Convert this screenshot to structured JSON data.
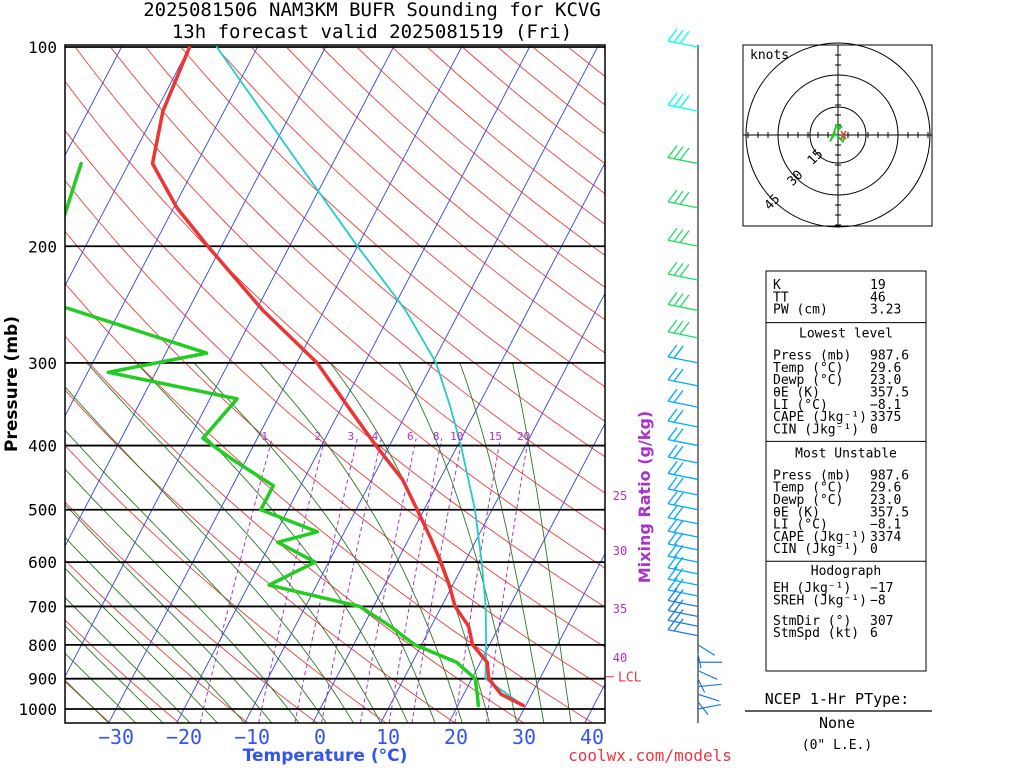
{
  "header": {
    "title": "2025081506 NAM3KM BUFR Sounding for KCVG",
    "subtitle": "13h forecast valid 2025081519 (Fri)"
  },
  "chart_data": {
    "type": "skew-t log-p",
    "ylabel": "Pressure (mb)",
    "xlabel": "Temperature (°C)",
    "mixing_label": "Mixing Ratio (g/kg)",
    "pressure_ticks": [
      100,
      200,
      300,
      400,
      500,
      600,
      700,
      800,
      900,
      1000
    ],
    "temp_ticks": [
      -30,
      -20,
      -10,
      0,
      10,
      20,
      30,
      40
    ],
    "mixing_ratios": [
      "1",
      "2",
      "3",
      "4",
      "6",
      "8",
      "10",
      "15",
      "20"
    ],
    "theta_e_labels": [
      "25",
      "30",
      "35",
      "40"
    ],
    "lcl_label": "LCL",
    "lcl_pressure": 900,
    "temperature": [
      {
        "p": 987.6,
        "t": 29.6
      },
      {
        "p": 950,
        "t": 25.5
      },
      {
        "p": 900,
        "t": 22.5
      },
      {
        "p": 850,
        "t": 21.0
      },
      {
        "p": 800,
        "t": 17.5
      },
      {
        "p": 750,
        "t": 15.5
      },
      {
        "p": 700,
        "t": 12.0
      },
      {
        "p": 650,
        "t": 9.5
      },
      {
        "p": 600,
        "t": 6.5
      },
      {
        "p": 550,
        "t": 3.0
      },
      {
        "p": 500,
        "t": -1.0
      },
      {
        "p": 450,
        "t": -5.5
      },
      {
        "p": 400,
        "t": -12.0
      },
      {
        "p": 350,
        "t": -19.0
      },
      {
        "p": 300,
        "t": -27.0
      },
      {
        "p": 250,
        "t": -39.0
      },
      {
        "p": 200,
        "t": -52.0
      },
      {
        "p": 175,
        "t": -59.5
      },
      {
        "p": 150,
        "t": -66.5
      },
      {
        "p": 125,
        "t": -69.0
      },
      {
        "p": 100,
        "t": -70.0
      }
    ],
    "dewpoint": [
      {
        "p": 987.6,
        "t": 23.0
      },
      {
        "p": 950,
        "t": 22.0
      },
      {
        "p": 900,
        "t": 20.5
      },
      {
        "p": 850,
        "t": 16.5
      },
      {
        "p": 800,
        "t": 9.0
      },
      {
        "p": 750,
        "t": 4.0
      },
      {
        "p": 700,
        "t": -2.0
      },
      {
        "p": 650,
        "t": -17.0
      },
      {
        "p": 600,
        "t": -12.0
      },
      {
        "p": 560,
        "t": -19.0
      },
      {
        "p": 540,
        "t": -14.0
      },
      {
        "p": 500,
        "t": -24.0
      },
      {
        "p": 460,
        "t": -24.0
      },
      {
        "p": 420,
        "t": -32.0
      },
      {
        "p": 390,
        "t": -38.0
      },
      {
        "p": 340,
        "t": -36.0
      },
      {
        "p": 310,
        "t": -57.0
      },
      {
        "p": 290,
        "t": -44.0
      },
      {
        "p": 240,
        "t": -73.0
      },
      {
        "p": 150,
        "t": -77.0
      }
    ],
    "parcel": [
      {
        "p": 987.6,
        "t": 29.6
      },
      {
        "p": 900,
        "t": 22.0
      },
      {
        "p": 850,
        "t": 20.8
      },
      {
        "p": 800,
        "t": 19.5
      },
      {
        "p": 700,
        "t": 16.5
      },
      {
        "p": 600,
        "t": 12.5
      },
      {
        "p": 500,
        "t": 7.5
      },
      {
        "p": 400,
        "t": 0.5
      },
      {
        "p": 350,
        "t": -4.0
      },
      {
        "p": 300,
        "t": -9.5
      },
      {
        "p": 250,
        "t": -18.0
      },
      {
        "p": 200,
        "t": -30.0
      },
      {
        "p": 150,
        "t": -45.0
      },
      {
        "p": 100,
        "t": -66.0
      }
    ],
    "hodograph": {
      "title": "knots",
      "rings": [
        "15",
        "30",
        "45"
      ],
      "uv": [
        [
          0,
          -3
        ],
        [
          2,
          -5
        ],
        [
          -1,
          -6
        ],
        [
          -2,
          -3
        ],
        [
          -4,
          2
        ],
        [
          -5,
          4
        ],
        [
          -2,
          -1
        ],
        [
          1,
          2
        ],
        [
          3,
          4
        ],
        [
          4,
          2
        ],
        [
          2,
          0
        ]
      ]
    },
    "wind_colors": {
      "low": "#1e7be0",
      "mid": "#00aaff",
      "high": "#00ffff",
      "green": "#22dd66"
    }
  },
  "indices": {
    "top": [
      {
        "label": "K",
        "value": "19"
      },
      {
        "label": "TT",
        "value": "46"
      },
      {
        "label": "PW (cm)",
        "value": "3.23"
      }
    ],
    "lowest": {
      "header": "Lowest level",
      "rows": [
        {
          "label": "Press (mb)",
          "value": "987.6"
        },
        {
          "label": "Temp (°C)",
          "value": "29.6"
        },
        {
          "label": "Dewp (°C)",
          "value": "23.0"
        },
        {
          "label": "θE (K)",
          "value": "357.5"
        },
        {
          "label": "LI (°C)",
          "value": "-8.1"
        },
        {
          "label": "CAPE (Jkg⁻¹)",
          "value": "3375"
        },
        {
          "label": "CIN (Jkg⁻¹)",
          "value": "0"
        }
      ]
    },
    "unstable": {
      "header": "Most Unstable",
      "rows": [
        {
          "label": "Press (mb)",
          "value": "987.6"
        },
        {
          "label": "Temp (°C)",
          "value": "29.6"
        },
        {
          "label": "Dewp (°C)",
          "value": "23.0"
        },
        {
          "label": "θE (K)",
          "value": "357.5"
        },
        {
          "label": "LI (°C)",
          "value": "-8.1"
        },
        {
          "label": "CAPE (Jkg⁻¹)",
          "value": "3374"
        },
        {
          "label": "CIN (Jkg⁻¹)",
          "value": "0"
        }
      ]
    },
    "hodo": {
      "header": "Hodograph",
      "rows": [
        {
          "label": "EH (Jkg⁻¹)",
          "value": "-17"
        },
        {
          "label": "SREH (Jkg⁻¹)",
          "value": "-8"
        },
        {
          "label": "StmDir (°)",
          "value": "307"
        },
        {
          "label": "StmSpd (kt)",
          "value": "6"
        }
      ]
    }
  },
  "ptype": {
    "title": "NCEP 1-Hr PType:",
    "value": "None",
    "amount": "(0\" L.E.)"
  },
  "credit": "coolwx.com/models"
}
